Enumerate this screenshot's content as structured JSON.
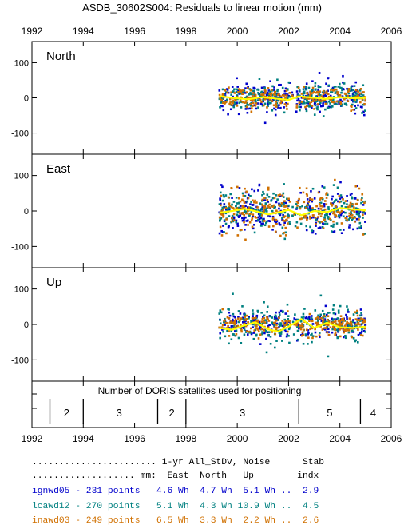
{
  "chart_data": {
    "type": "scatter",
    "title": "ASDB_30602S004: Residuals to linear motion (mm)",
    "xlim": [
      1992,
      2006
    ],
    "x_ticks": [
      1992,
      1994,
      1996,
      1998,
      2000,
      2002,
      2004,
      2006
    ],
    "x_tick_labels": [
      "1992",
      "1994",
      "1996",
      "1998",
      "2000",
      "2002",
      "2004",
      "2006"
    ],
    "ylim": [
      -160,
      160
    ],
    "y_ticks": [
      100,
      0,
      -100
    ],
    "y_tick_labels": [
      "100",
      "0",
      "-100"
    ],
    "grid": false,
    "data_span": [
      1999.3,
      2005.0
    ],
    "colors": {
      "ignwd05": "#0000cc",
      "lcawd12": "#008080",
      "inawd03": "#d07000",
      "smooth": "#ffff00",
      "axis": "#000000"
    },
    "panels": [
      {
        "name": "North",
        "noise_mm": {
          "ignwd05": 22,
          "lcawd12": 20,
          "inawd03": 16
        },
        "smooth_y": [
          [
            1999.3,
            5
          ],
          [
            1999.8,
            0
          ],
          [
            2000.4,
            -4
          ],
          [
            2001.0,
            2
          ],
          [
            2001.6,
            -3
          ],
          [
            2002.0,
            -6
          ],
          [
            2002.4,
            4
          ],
          [
            2002.9,
            1
          ],
          [
            2003.4,
            -3
          ],
          [
            2004.0,
            2
          ],
          [
            2004.5,
            -1
          ],
          [
            2005.0,
            0
          ]
        ]
      },
      {
        "name": "East",
        "noise_mm": {
          "ignwd05": 32,
          "lcawd12": 28,
          "inawd03": 30
        },
        "smooth_y": [
          [
            1999.3,
            -5
          ],
          [
            1999.8,
            0
          ],
          [
            2000.3,
            6
          ],
          [
            2000.8,
            -2
          ],
          [
            2001.2,
            -10
          ],
          [
            2001.6,
            -4
          ],
          [
            2002.0,
            3
          ],
          [
            2002.5,
            -12
          ],
          [
            2003.0,
            0
          ],
          [
            2003.5,
            -3
          ],
          [
            2004.0,
            8
          ],
          [
            2004.5,
            5
          ],
          [
            2005.0,
            2
          ]
        ]
      },
      {
        "name": "Up",
        "noise_mm": {
          "ignwd05": 20,
          "lcawd12": 26,
          "inawd03": 14
        },
        "smooth_y": [
          [
            1999.3,
            -10
          ],
          [
            1999.8,
            -15
          ],
          [
            2000.3,
            -2
          ],
          [
            2000.7,
            6
          ],
          [
            2001.2,
            -14
          ],
          [
            2001.6,
            -20
          ],
          [
            2002.0,
            -6
          ],
          [
            2002.5,
            15
          ],
          [
            2003.0,
            -10
          ],
          [
            2003.5,
            5
          ],
          [
            2004.0,
            -8
          ],
          [
            2004.5,
            -10
          ],
          [
            2005.0,
            -6
          ]
        ]
      }
    ],
    "satellites": {
      "title": "Number of DORIS satellites used for positioning",
      "boundaries": [
        1992.7,
        1994.0,
        1996.9,
        1998.0,
        2002.4,
        2004.8
      ],
      "segments": [
        {
          "label": "2",
          "x": 1993.35
        },
        {
          "label": "3",
          "x": 1995.4
        },
        {
          "label": "2",
          "x": 1997.45
        },
        {
          "label": "3",
          "x": 2000.2
        },
        {
          "label": "5",
          "x": 2003.6
        },
        {
          "label": "4",
          "x": 2005.3
        }
      ]
    }
  },
  "stats": {
    "header1": "....................... 1-yr All_StDv, Noise      Stab",
    "header2": "................... mm:  East  North   Up        indx",
    "rows": [
      {
        "key": "ignwd05",
        "text": "ignwd05 - 231 points   4.6 Wh  4.7 Wh  5.1 Wh ..  2.9"
      },
      {
        "key": "lcawd12",
        "text": "lcawd12 - 270 points   5.1 Wh  4.3 Wh 10.9 Wh ..  4.5"
      },
      {
        "key": "inawd03",
        "text": "inawd03 - 249 points   6.5 Wh  3.3 Wh  2.2 Wh ..  2.6"
      }
    ]
  }
}
